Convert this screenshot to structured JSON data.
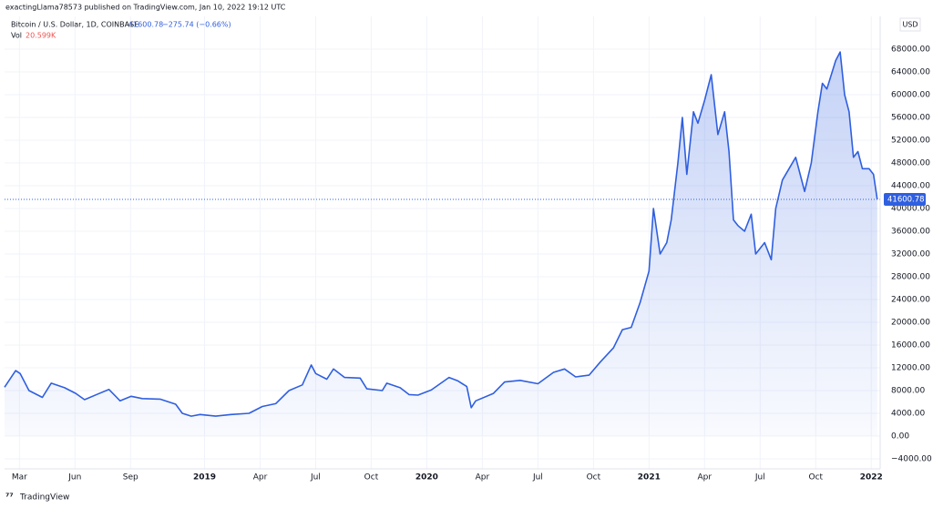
{
  "header": {
    "publisher": "exactingLlama78573 published on TradingView.com, Jan 10, 2022 19:12 UTC"
  },
  "legend": {
    "last": "41600.78",
    "change": "−275.74 (−0.66%)",
    "vol_label": "Vol",
    "vol_value": "20.599K"
  },
  "footer": {
    "brand": "TradingView"
  },
  "chart_data": {
    "type": "area",
    "currency": "USD",
    "xlim": [
      2018.1,
      2022.04
    ],
    "ylim": [
      -5760,
      73760
    ],
    "grid": true,
    "xticks": [
      {
        "value": 2018.167,
        "label": "Mar"
      },
      {
        "value": 2018.417,
        "label": "Jun"
      },
      {
        "value": 2018.667,
        "label": "Sep"
      },
      2019,
      {
        "value": 2019.25,
        "label": "Apr"
      },
      {
        "value": 2019.5,
        "label": "Jul"
      },
      {
        "value": 2019.75,
        "label": "Oct"
      },
      2020,
      {
        "value": 2020.25,
        "label": "Apr"
      },
      {
        "value": 2020.5,
        "label": "Jul"
      },
      {
        "value": 2020.75,
        "label": "Oct"
      },
      2021,
      {
        "value": 2021.25,
        "label": "Apr"
      },
      {
        "value": 2021.5,
        "label": "Jul"
      },
      {
        "value": 2021.75,
        "label": "Oct"
      },
      2022
    ],
    "yticks": [
      {
        "value": -4000,
        "label": "−4000.00"
      },
      {
        "value": 0,
        "label": "0.00"
      },
      {
        "value": 4000,
        "label": "4000.00"
      },
      {
        "value": 8000,
        "label": "8000.00"
      },
      {
        "value": 12000,
        "label": "12000.00"
      },
      {
        "value": 16000,
        "label": "16000.00"
      },
      {
        "value": 20000,
        "label": "20000.00"
      },
      {
        "value": 24000,
        "label": "24000.00"
      },
      {
        "value": 28000,
        "label": "28000.00"
      },
      {
        "value": 32000,
        "label": "32000.00"
      },
      {
        "value": 36000,
        "label": "36000.00"
      },
      {
        "value": 40000,
        "label": "40000.00"
      },
      {
        "value": 44000,
        "label": "44000.00"
      },
      {
        "value": 48000,
        "label": "48000.00"
      },
      {
        "value": 52000,
        "label": "52000.00"
      },
      {
        "value": 56000,
        "label": "56000.00"
      },
      {
        "value": 60000,
        "label": "60000.00"
      },
      {
        "value": 64000,
        "label": "64000.00"
      },
      {
        "value": 68000,
        "label": "68000.00"
      }
    ],
    "x": [
      2018.1,
      2018.15,
      2018.17,
      2018.21,
      2018.27,
      2018.31,
      2018.37,
      2018.42,
      2018.46,
      2018.52,
      2018.57,
      2018.62,
      2018.67,
      2018.72,
      2018.8,
      2018.87,
      2018.9,
      2018.94,
      2018.98,
      2019.05,
      2019.12,
      2019.2,
      2019.26,
      2019.32,
      2019.38,
      2019.44,
      2019.48,
      2019.5,
      2019.55,
      2019.58,
      2019.63,
      2019.7,
      2019.73,
      2019.8,
      2019.82,
      2019.88,
      2019.92,
      2019.96,
      2020.02,
      2020.1,
      2020.14,
      2020.18,
      2020.2,
      2020.22,
      2020.3,
      2020.35,
      2020.42,
      2020.5,
      2020.57,
      2020.62,
      2020.67,
      2020.73,
      2020.78,
      2020.84,
      2020.88,
      2020.92,
      2020.96,
      2021.0,
      2021.02,
      2021.05,
      2021.08,
      2021.1,
      2021.13,
      2021.15,
      2021.17,
      2021.2,
      2021.22,
      2021.25,
      2021.28,
      2021.31,
      2021.34,
      2021.36,
      2021.38,
      2021.4,
      2021.43,
      2021.46,
      2021.48,
      2021.52,
      2021.55,
      2021.57,
      2021.6,
      2021.63,
      2021.66,
      2021.68,
      2021.7,
      2021.73,
      2021.76,
      2021.78,
      2021.8,
      2021.84,
      2021.86,
      2021.88,
      2021.9,
      2021.92,
      2021.94,
      2021.96,
      2021.99,
      2022.01,
      2022.027
    ],
    "series": [
      {
        "name": "Bitcoin / U.S. Dollar, 1D, COINBASE",
        "color": "#2f5fe0",
        "values": [
          8600,
          11500,
          11000,
          8000,
          6800,
          9300,
          8500,
          7500,
          6400,
          7400,
          8200,
          6200,
          7000,
          6600,
          6500,
          5600,
          4000,
          3500,
          3800,
          3500,
          3800,
          4000,
          5200,
          5700,
          8000,
          9000,
          12500,
          11000,
          10000,
          11800,
          10300,
          10200,
          8300,
          8000,
          9300,
          8500,
          7300,
          7200,
          8100,
          10300,
          9700,
          8700,
          5000,
          6200,
          7500,
          9500,
          9800,
          9200,
          11200,
          11800,
          10400,
          10700,
          13000,
          15500,
          18700,
          19100,
          23500,
          29000,
          40000,
          32000,
          34000,
          38000,
          48000,
          56000,
          46000,
          57000,
          55000,
          59000,
          63500,
          53000,
          57000,
          50000,
          38000,
          37000,
          36000,
          39000,
          32000,
          34000,
          31000,
          40000,
          45000,
          47000,
          49000,
          46000,
          43000,
          48000,
          57000,
          62000,
          61000,
          66000,
          67500,
          60000,
          57000,
          49000,
          50000,
          47000,
          47000,
          46000,
          41600.78
        ]
      }
    ]
  }
}
